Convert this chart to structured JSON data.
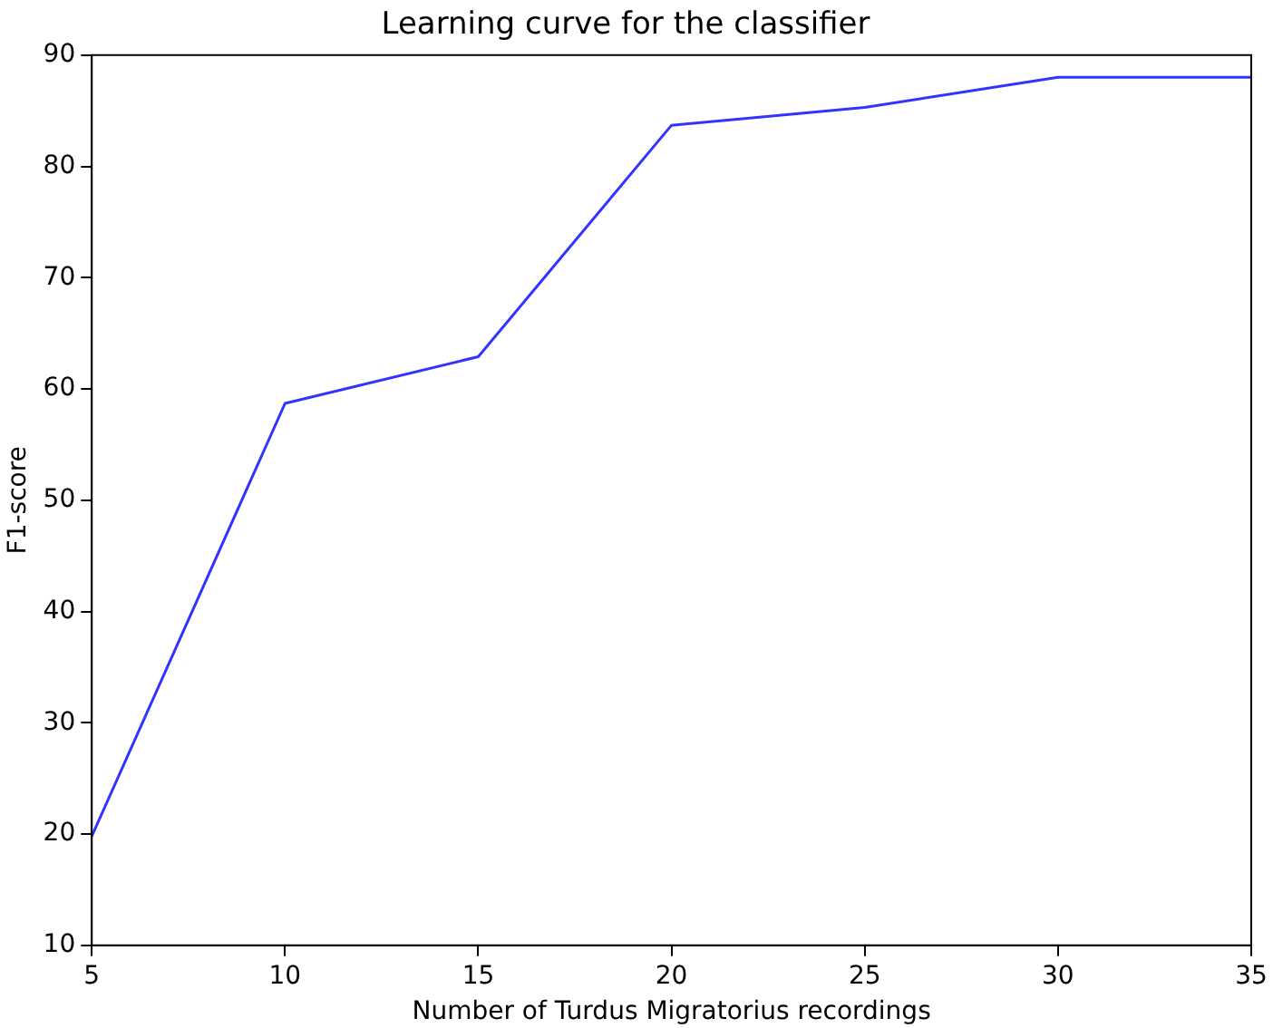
{
  "chart_data": {
    "type": "line",
    "title": "Learning curve for the classifier",
    "xlabel": "Number of Turdus Migratorius recordings",
    "ylabel": "F1-score",
    "x": [
      5,
      10,
      15,
      20,
      25,
      30,
      35
    ],
    "series": [
      {
        "color": "#3333ff",
        "values": [
          19.8,
          58.7,
          62.9,
          83.7,
          85.3,
          88.0,
          88.0
        ]
      }
    ],
    "xlim": [
      5,
      35
    ],
    "xticks": [
      5,
      10,
      15,
      20,
      25,
      30,
      35
    ],
    "ylim": [
      10,
      90
    ],
    "yticks": [
      10,
      20,
      30,
      40,
      50,
      60,
      70,
      80,
      90
    ],
    "grid": false,
    "legend": false,
    "marker": "none",
    "line_style": "solid"
  }
}
